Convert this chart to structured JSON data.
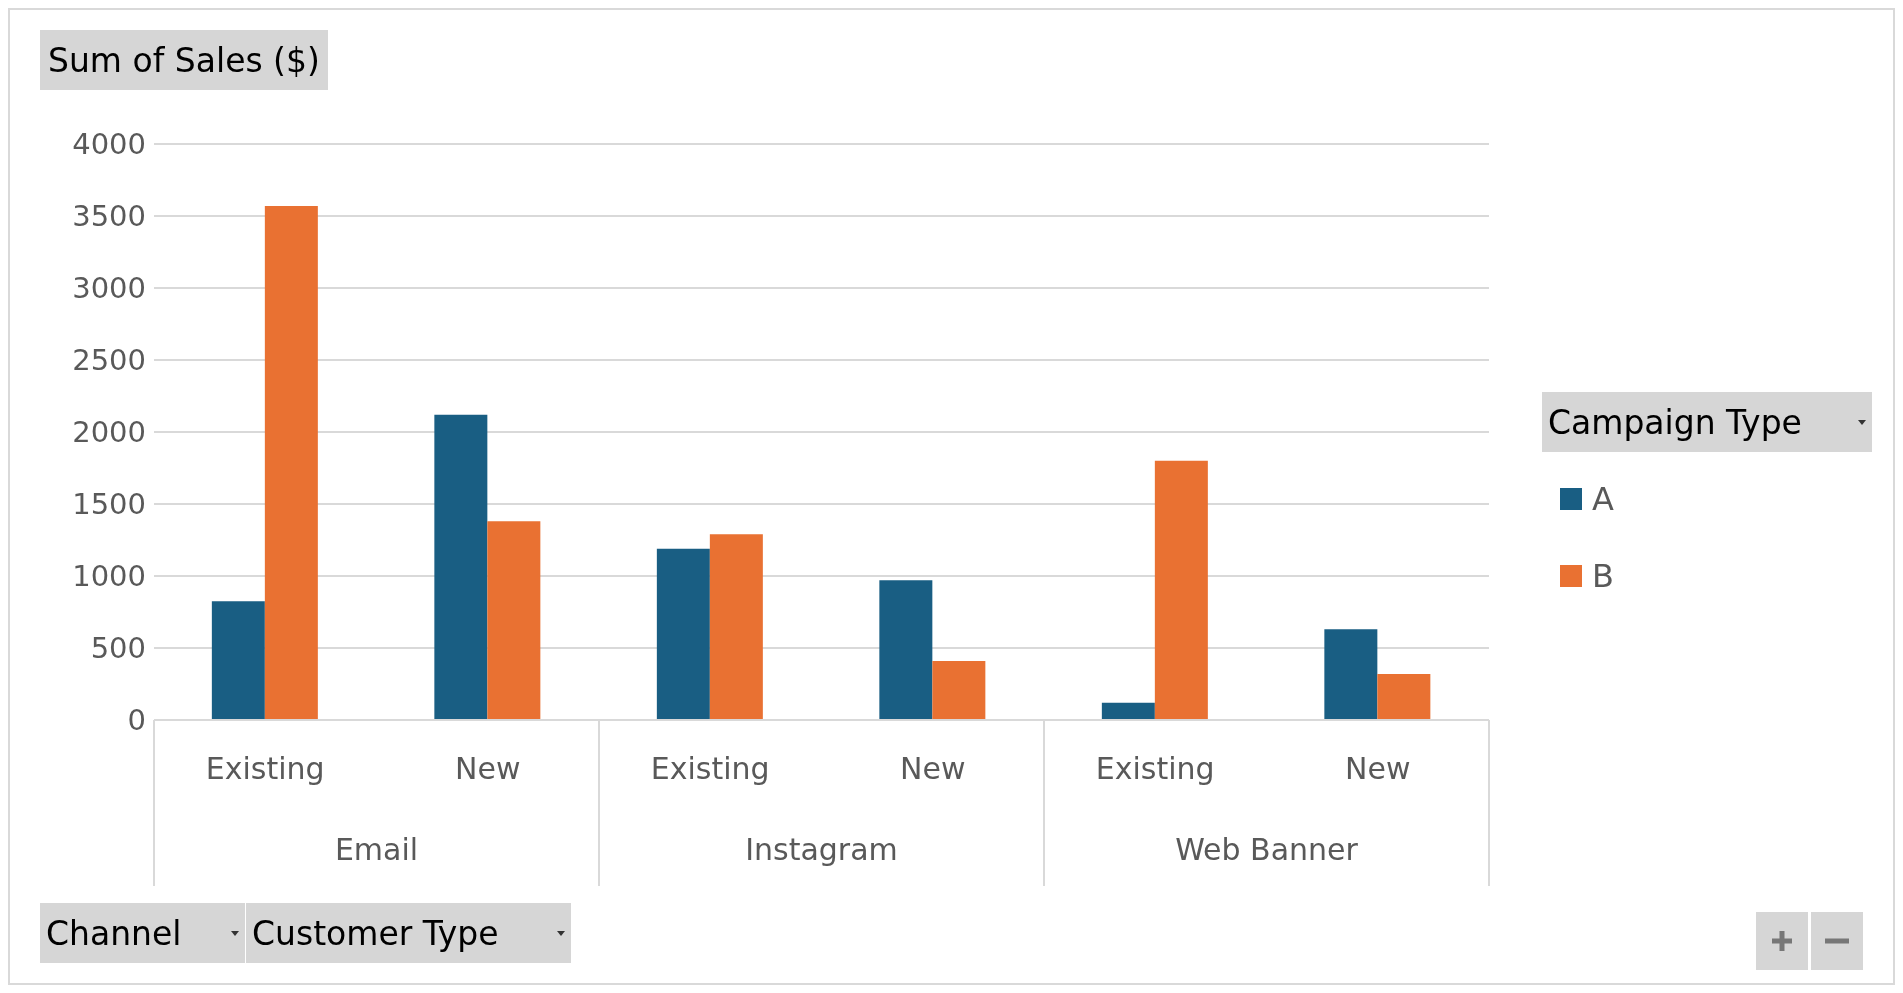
{
  "chart_data": {
    "type": "bar",
    "ylabel": "Sum of Sales ($)",
    "xlabel": "Channel",
    "legend_title": "Campaign Type",
    "categories": [
      "Existing",
      "New",
      "Existing",
      "New",
      "Existing",
      "New"
    ],
    "series": [
      {
        "name": "A",
        "color": "#195e83",
        "values": [
          825,
          2120,
          1190,
          970,
          120,
          630
        ]
      },
      {
        "name": "B",
        "color": "#e97132",
        "values": [
          3570,
          1380,
          1290,
          410,
          1800,
          320
        ]
      }
    ],
    "ylim": [
      0,
      4000
    ],
    "yticks": [
      0,
      500,
      1000,
      1500,
      2000,
      2500,
      3000,
      3500,
      4000
    ],
    "grid": "y",
    "legend": "right",
    "annotations": [
      "Email",
      "Instagram",
      "Web Banner",
      "Customer Type"
    ]
  }
}
